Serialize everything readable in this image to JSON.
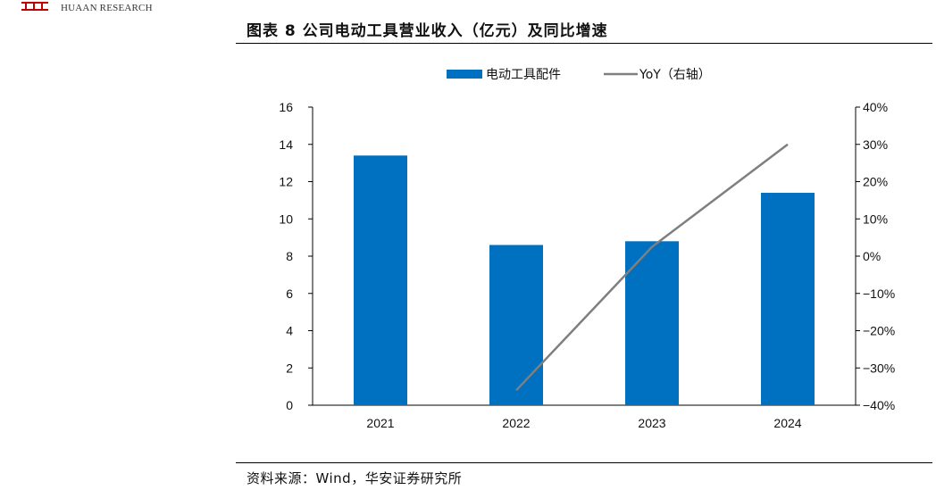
{
  "header": {
    "brand": "HUAAN RESEARCH",
    "title": "图表 8 公司电动工具营业收入（亿元）及同比增速"
  },
  "footer": {
    "source": "资料来源：Wind，华安证券研究所"
  },
  "colors": {
    "bar": "#0070C0",
    "line": "#7F7F7F",
    "axis": "#000000",
    "logo": "#C00000"
  },
  "chart_data": {
    "type": "bar",
    "categories": [
      "2021",
      "2022",
      "2023",
      "2024"
    ],
    "series": [
      {
        "name": "电动工具配件",
        "type": "bar",
        "axis": "left",
        "values": [
          13.4,
          8.6,
          8.8,
          11.4
        ]
      },
      {
        "name": "YoY（右轴）",
        "type": "line",
        "axis": "right",
        "values": [
          null,
          -36.0,
          2.5,
          30.0
        ]
      }
    ],
    "y_left": {
      "min": 0,
      "max": 16,
      "ticks": [
        0,
        2,
        4,
        6,
        8,
        10,
        12,
        14,
        16
      ]
    },
    "y_right": {
      "min": -40,
      "max": 40,
      "ticks": [
        "-40%",
        "-30%",
        "-20%",
        "-10%",
        "0%",
        "10%",
        "20%",
        "30%",
        "40%"
      ]
    },
    "legend_position": "top-center",
    "grid": false
  }
}
